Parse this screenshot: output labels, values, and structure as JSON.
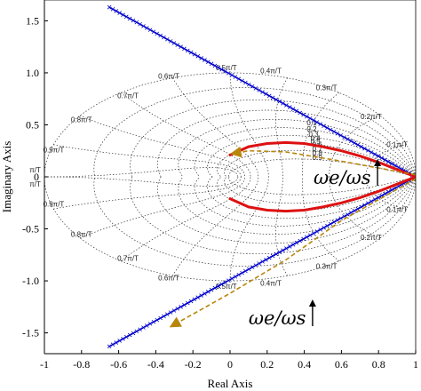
{
  "chart_data": {
    "type": "line",
    "title": "",
    "xlabel": "Real Axis",
    "ylabel": "Imaginary Axis",
    "xlim": [
      -1,
      1
    ],
    "ylim": [
      -1.7,
      1.7
    ],
    "x_ticks": [
      "-1",
      "-0.8",
      "-0.6",
      "-0.4",
      "-0.2",
      "0",
      "0.2",
      "0.4",
      "0.6",
      "0.8",
      "1"
    ],
    "x_tick_values": [
      -1,
      -0.8,
      -0.6,
      -0.4,
      -0.2,
      0,
      0.2,
      0.4,
      0.6,
      0.8,
      1
    ],
    "y_ticks": [
      "1.5",
      "1.0",
      "0.5",
      "0",
      "-0.5",
      "-1.0",
      "-1.5"
    ],
    "y_tick_values": [
      1.5,
      1.0,
      0.5,
      0,
      -0.5,
      -1.0,
      -1.5
    ],
    "grid": "z-plane damping / natural-frequency grid (dotted)",
    "damping_labels": [
      "0.1",
      "0.2",
      "0.3",
      "0.4",
      "0.5",
      "0.6",
      "0.7",
      "0.8",
      "0.9"
    ],
    "frequency_labels": [
      "0.1π/T",
      "0.2π/T",
      "0.3π/T",
      "0.4π/T",
      "0.5π/T",
      "0.6π/T",
      "0.7π/T",
      "0.8π/T",
      "0.9π/T",
      "π/T"
    ],
    "series": [
      {
        "color": "#0000cc",
        "style": "cross-marked line",
        "x": [
          -0.65,
          1.0
        ],
        "y": [
          1.63,
          0.0
        ]
      },
      {
        "color": "#0000cc",
        "style": "cross-marked line",
        "x": [
          -0.65,
          1.0
        ],
        "y": [
          -1.63,
          0.0
        ]
      },
      {
        "color": "#dd1111",
        "style": "thick line",
        "x": [
          0.0,
          0.1,
          0.2,
          0.3,
          0.4,
          0.5,
          0.6,
          0.7,
          0.8,
          0.9,
          1.0
        ],
        "y": [
          0.21,
          0.29,
          0.32,
          0.33,
          0.32,
          0.29,
          0.25,
          0.2,
          0.14,
          0.07,
          0.0
        ]
      },
      {
        "color": "#dd1111",
        "style": "thick line",
        "x": [
          0.0,
          0.1,
          0.2,
          0.3,
          0.4,
          0.5,
          0.6,
          0.7,
          0.8,
          0.9,
          1.0
        ],
        "y": [
          -0.21,
          -0.29,
          -0.32,
          -0.33,
          -0.32,
          -0.29,
          -0.25,
          -0.2,
          -0.14,
          -0.07,
          0.0
        ]
      },
      {
        "color": "#b8860b",
        "style": "dashed line with arrowhead",
        "x": [
          1.0,
          0.6,
          0.3,
          0.1,
          0.03
        ],
        "y": [
          0.02,
          0.15,
          0.24,
          0.25,
          0.23
        ]
      },
      {
        "color": "#b8860b",
        "style": "dashed line with arrowhead",
        "x": [
          1.0,
          0.6,
          0.3,
          0.0,
          -0.3
        ],
        "y": [
          -0.02,
          -0.42,
          -0.8,
          -1.12,
          -1.42
        ]
      }
    ],
    "annotations": [
      {
        "text": "ωe/ωs",
        "x": 0.45,
        "y": 0.0
      },
      {
        "text": "ωe/ωs",
        "x": 0.1,
        "y": -1.35
      }
    ]
  }
}
